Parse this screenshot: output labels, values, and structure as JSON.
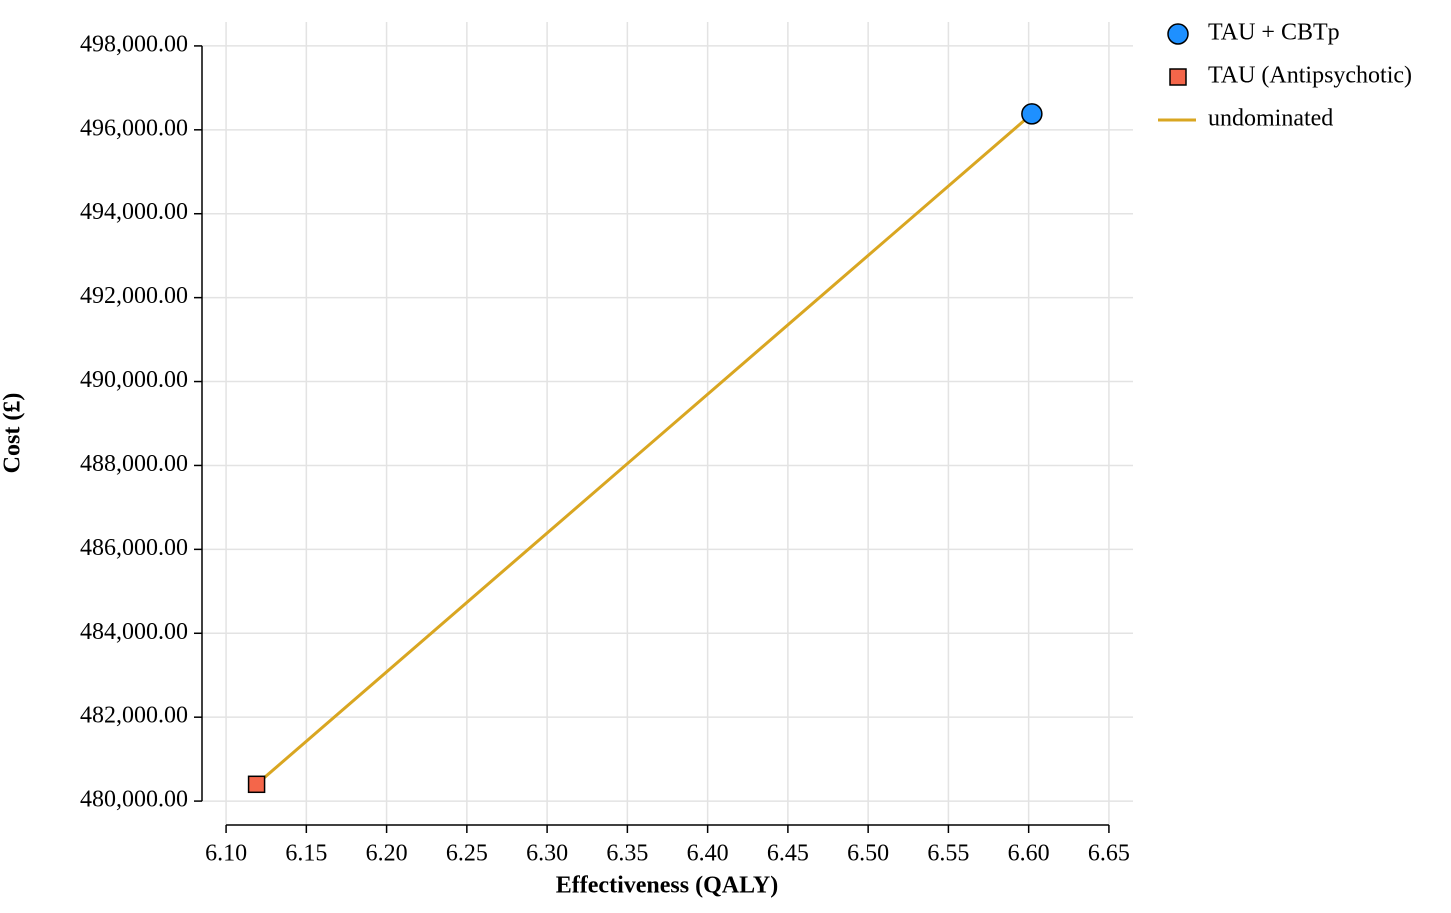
{
  "chart_data": {
    "type": "scatter",
    "x_label": "Effectiveness (QALY)",
    "y_label": "Cost (£)",
    "xlim": [
      6.085,
      6.665
    ],
    "ylim": [
      479430,
      498570
    ],
    "xticks": [
      {
        "value": 6.1,
        "label": "6.10"
      },
      6.15,
      {
        "value": 6.2,
        "label": "6.20"
      },
      6.25,
      {
        "value": 6.3,
        "label": "6.30"
      },
      6.35,
      {
        "value": 6.4,
        "label": "6.40"
      },
      6.45,
      {
        "value": 6.5,
        "label": "6.50"
      },
      6.55,
      {
        "value": 6.6,
        "label": "6.60"
      },
      6.65
    ],
    "yticks": [
      {
        "value": 480000,
        "label": "480,000.00"
      },
      {
        "value": 482000,
        "label": "482,000.00"
      },
      {
        "value": 484000,
        "label": "484,000.00"
      },
      {
        "value": 486000,
        "label": "486,000.00"
      },
      {
        "value": 488000,
        "label": "488,000.00"
      },
      {
        "value": 490000,
        "label": "490,000.00"
      },
      {
        "value": 492000,
        "label": "492,000.00"
      },
      {
        "value": 494000,
        "label": "494,000.00"
      },
      {
        "value": 496000,
        "label": "496,000.00"
      },
      {
        "value": 498000,
        "label": "498,000.00"
      }
    ],
    "grid": true,
    "legend": "top-right",
    "series": [
      {
        "name": "TAU + CBTp",
        "color": "#1e90ff",
        "marker": "circle",
        "x": [
          6.602
        ],
        "values": [
          496380
        ]
      },
      {
        "name": "TAU (Antipsychotic)",
        "color": "#f4664a",
        "marker": "square",
        "x": [
          6.119
        ],
        "values": [
          480400
        ]
      },
      {
        "name": "undominated",
        "type": "line",
        "color": "#d9a621",
        "x": [
          6.119,
          6.602
        ],
        "values": [
          480400,
          496380
        ]
      }
    ]
  }
}
